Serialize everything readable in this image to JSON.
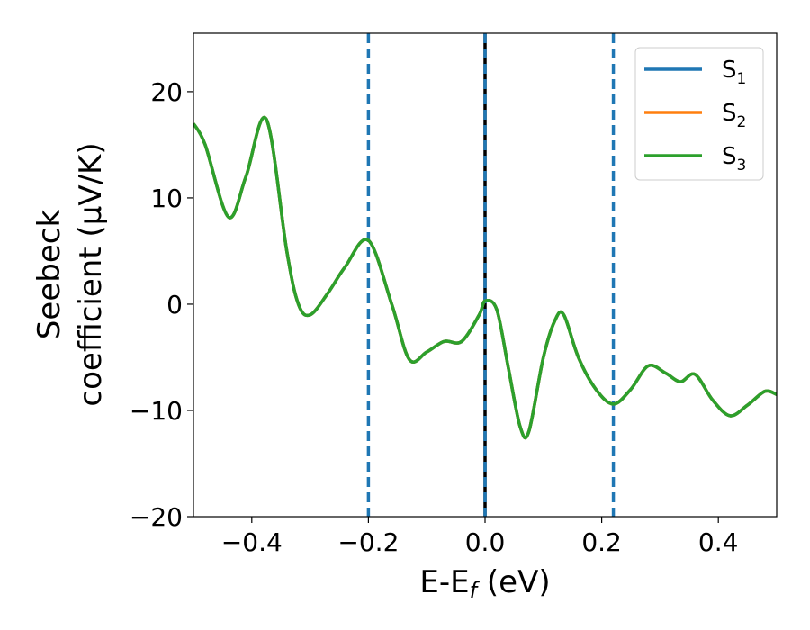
{
  "chart_data": {
    "type": "line",
    "xlabel": "E-E",
    "xlabel_sub": "f",
    "xlabel_unit": " (eV)",
    "ylabel_line1": "Seebeck",
    "ylabel_line2": "coefficient  (μV/K)",
    "xlim": [
      -0.5,
      0.5
    ],
    "ylim": [
      -20,
      25.5
    ],
    "x_ticks": [
      -0.4,
      -0.2,
      0.0,
      0.2,
      0.4
    ],
    "x_tick_labels": [
      "−0.4",
      "−0.2",
      "0.0",
      "0.2",
      "0.4"
    ],
    "y_ticks": [
      -20,
      -10,
      0,
      10,
      20
    ],
    "y_tick_labels": [
      "−20",
      "−10",
      "0",
      "10",
      "20"
    ],
    "grid": false,
    "legend_position": "top-right",
    "vertical_lines": [
      {
        "x": -0.2,
        "style": "dashed",
        "color": "#1f77b4"
      },
      {
        "x": 0.0,
        "style": "solid",
        "color": "#000000"
      },
      {
        "x": 0.0,
        "style": "dashed",
        "color": "#1f77b4"
      },
      {
        "x": 0.22,
        "style": "dashed",
        "color": "#1f77b4"
      }
    ],
    "x": [
      -0.5,
      -0.48,
      -0.44,
      -0.41,
      -0.375,
      -0.34,
      -0.32,
      -0.3,
      -0.27,
      -0.24,
      -0.2,
      -0.16,
      -0.13,
      -0.1,
      -0.07,
      -0.04,
      -0.01,
      0.0,
      0.02,
      0.04,
      0.06,
      0.075,
      0.1,
      0.12,
      0.135,
      0.16,
      0.19,
      0.22,
      0.25,
      0.28,
      0.31,
      0.335,
      0.36,
      0.39,
      0.42,
      0.45,
      0.48,
      0.5
    ],
    "series": [
      {
        "name": "S",
        "sub": "1",
        "color": "#1f77b4",
        "values": [
          17.0,
          15.0,
          8.2,
          12.0,
          17.4,
          5.0,
          0.0,
          -1.0,
          1.0,
          3.5,
          6.0,
          0.0,
          -5.2,
          -4.5,
          -3.5,
          -3.5,
          -1.0,
          0.3,
          -0.5,
          -6.0,
          -11.5,
          -12.0,
          -5.0,
          -1.5,
          -1.0,
          -5.0,
          -8.0,
          -9.4,
          -8.0,
          -5.8,
          -6.5,
          -7.3,
          -6.6,
          -9.0,
          -10.5,
          -9.5,
          -8.2,
          -8.5
        ]
      },
      {
        "name": "S",
        "sub": "2",
        "color": "#ff7f0e",
        "values": [
          17.0,
          15.0,
          8.2,
          12.0,
          17.4,
          5.0,
          0.0,
          -1.0,
          1.0,
          3.5,
          6.0,
          0.0,
          -5.2,
          -4.5,
          -3.5,
          -3.5,
          -1.0,
          0.3,
          -0.5,
          -6.0,
          -11.5,
          -12.0,
          -5.0,
          -1.5,
          -1.0,
          -5.0,
          -8.0,
          -9.4,
          -8.0,
          -5.8,
          -6.5,
          -7.3,
          -6.6,
          -9.0,
          -10.5,
          -9.5,
          -8.2,
          -8.5
        ]
      },
      {
        "name": "S",
        "sub": "3",
        "color": "#2ca02c",
        "values": [
          17.0,
          15.0,
          8.2,
          12.0,
          17.4,
          5.0,
          0.0,
          -1.0,
          1.0,
          3.5,
          6.0,
          0.0,
          -5.2,
          -4.5,
          -3.5,
          -3.5,
          -1.0,
          0.3,
          -0.5,
          -6.0,
          -11.5,
          -12.0,
          -5.0,
          -1.5,
          -1.0,
          -5.0,
          -8.0,
          -9.4,
          -8.0,
          -5.8,
          -6.5,
          -7.3,
          -6.6,
          -9.0,
          -10.5,
          -9.5,
          -8.2,
          -8.5
        ]
      }
    ]
  }
}
